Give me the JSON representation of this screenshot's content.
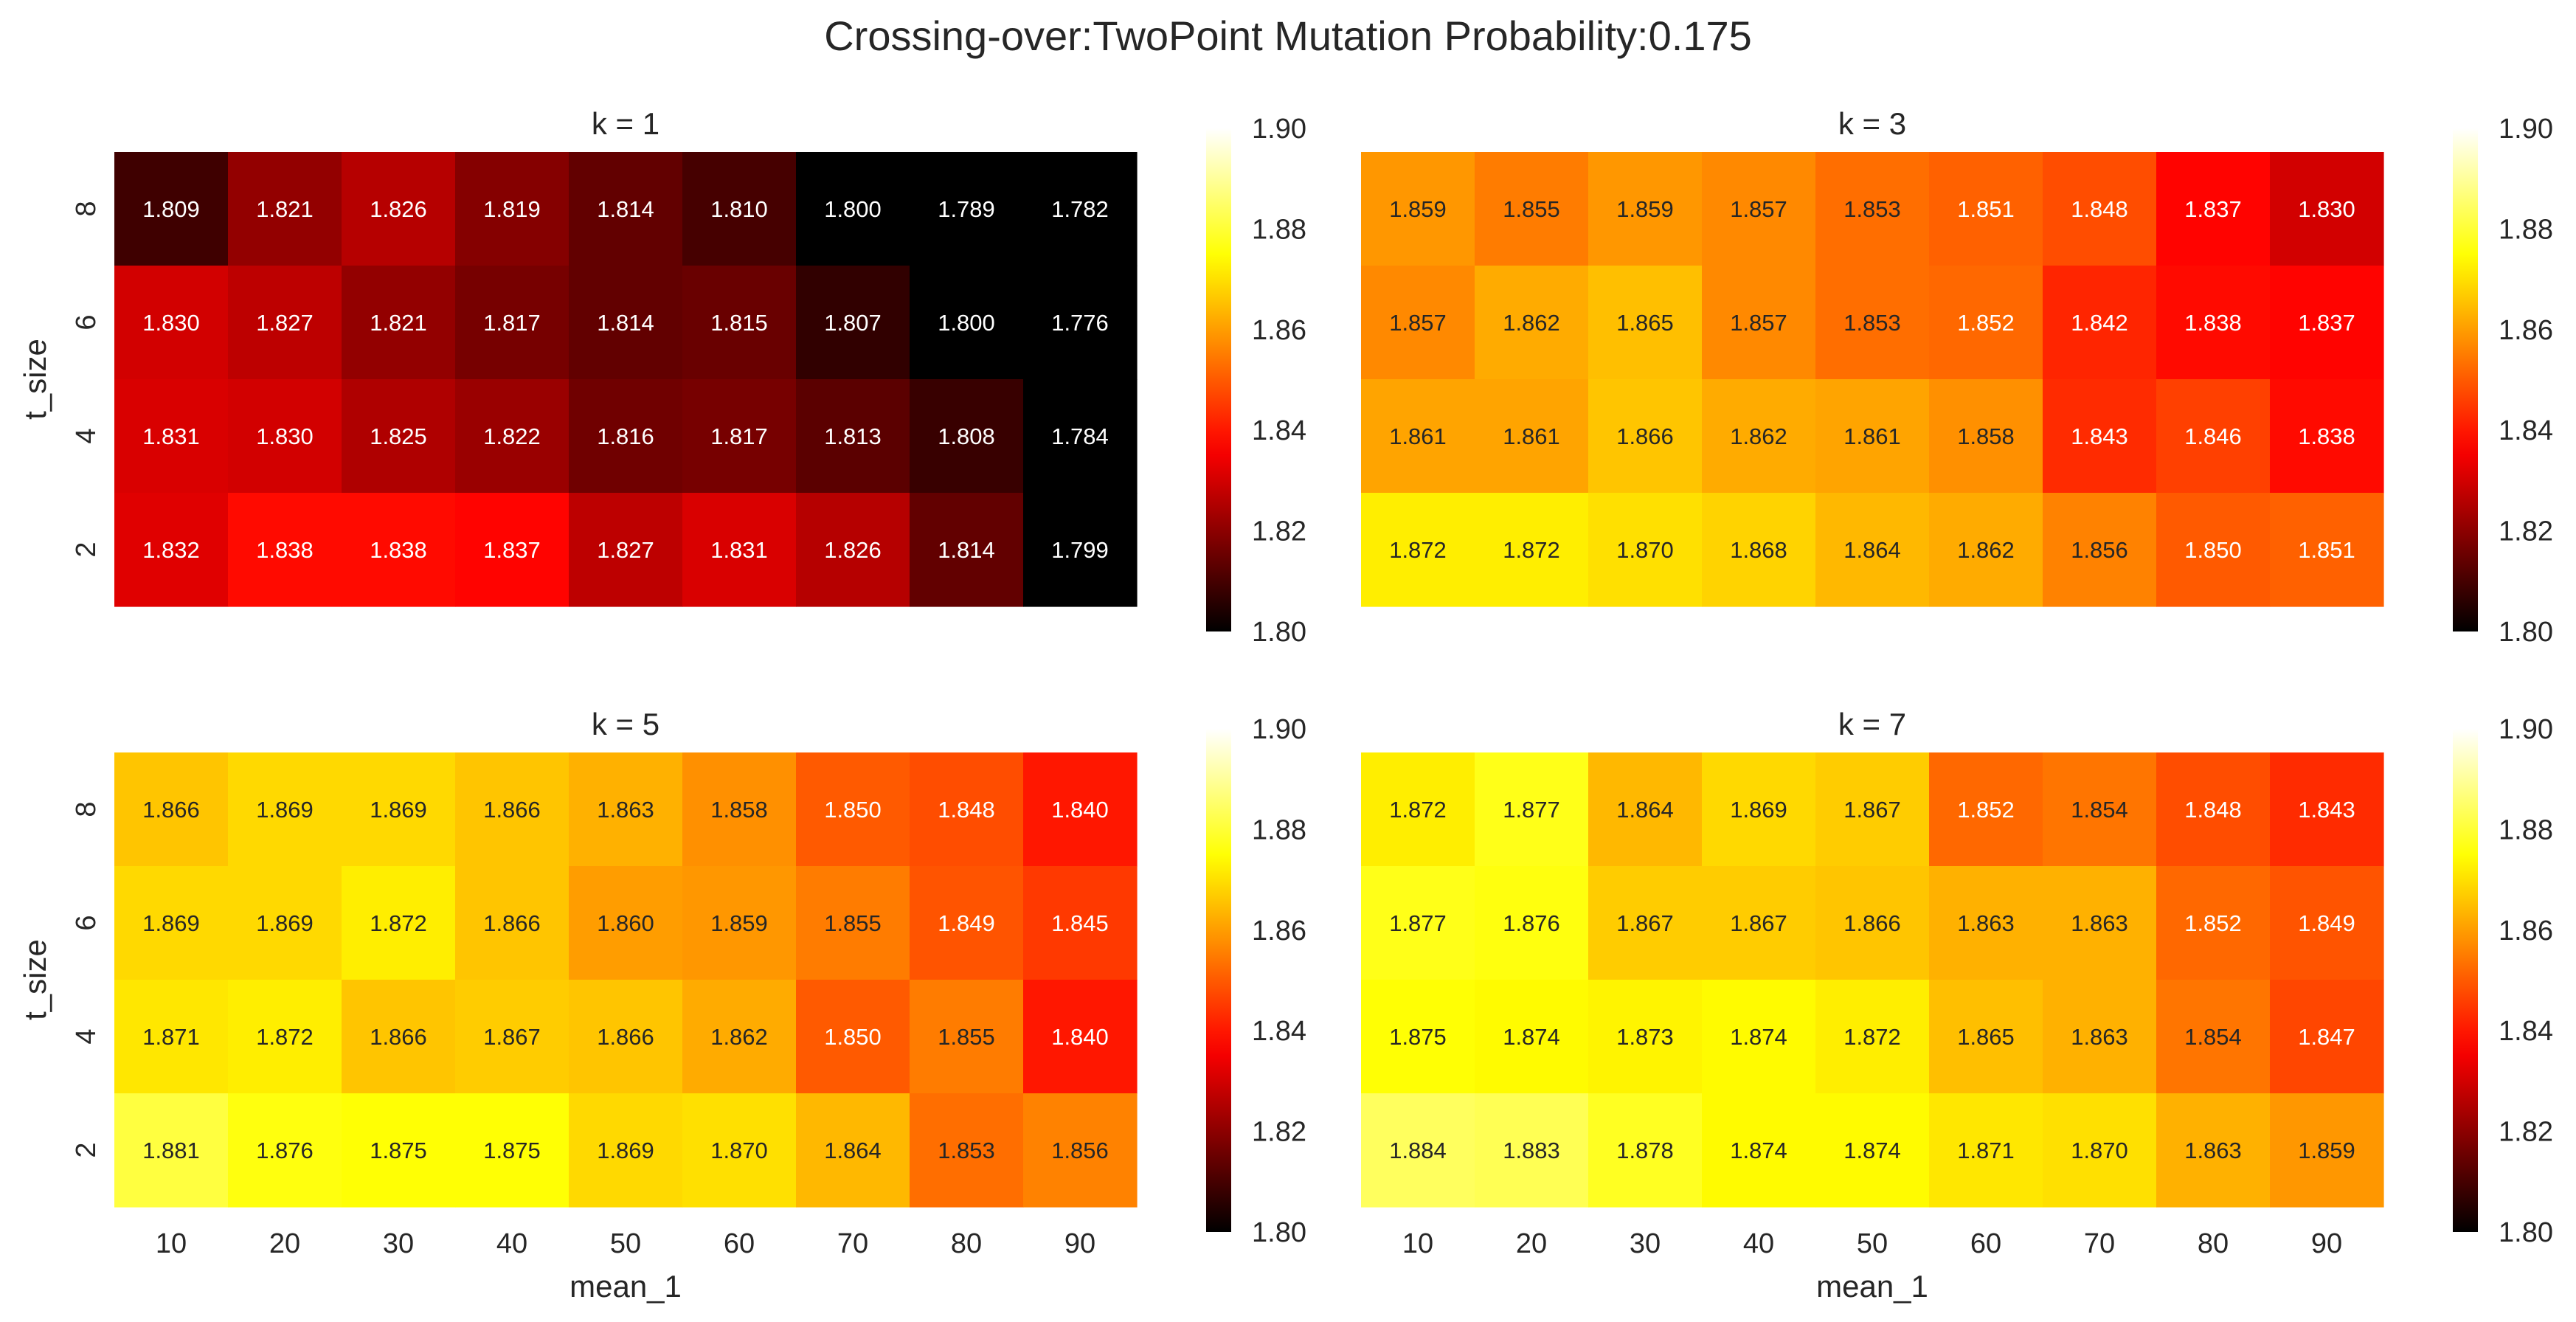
{
  "chart_data": {
    "type": "heatmap",
    "title": "Crossing-over:TwoPoint Mutation Probability:0.175",
    "xlabel": "mean_1",
    "ylabel": "t_size",
    "x_categories": [
      "10",
      "20",
      "30",
      "40",
      "50",
      "60",
      "70",
      "80",
      "90"
    ],
    "y_categories": [
      "8",
      "6",
      "4",
      "2"
    ],
    "colormap": "hot",
    "colorbar": {
      "min": 1.8,
      "max": 1.9,
      "ticks": [
        "1.80",
        "1.82",
        "1.84",
        "1.86",
        "1.88",
        "1.90"
      ]
    },
    "panels": [
      {
        "title": "k = 1",
        "values": [
          [
            1.809,
            1.821,
            1.826,
            1.819,
            1.814,
            1.81,
            1.8,
            1.789,
            1.782
          ],
          [
            1.83,
            1.827,
            1.821,
            1.817,
            1.814,
            1.815,
            1.807,
            1.8,
            1.776
          ],
          [
            1.831,
            1.83,
            1.825,
            1.822,
            1.816,
            1.817,
            1.813,
            1.808,
            1.784
          ],
          [
            1.832,
            1.838,
            1.838,
            1.837,
            1.827,
            1.831,
            1.826,
            1.814,
            1.799
          ]
        ]
      },
      {
        "title": "k = 3",
        "values": [
          [
            1.859,
            1.855,
            1.859,
            1.857,
            1.853,
            1.851,
            1.848,
            1.837,
            1.83
          ],
          [
            1.857,
            1.862,
            1.865,
            1.857,
            1.853,
            1.852,
            1.842,
            1.838,
            1.837
          ],
          [
            1.861,
            1.861,
            1.866,
            1.862,
            1.861,
            1.858,
            1.843,
            1.846,
            1.838
          ],
          [
            1.872,
            1.872,
            1.87,
            1.868,
            1.864,
            1.862,
            1.856,
            1.85,
            1.851
          ]
        ]
      },
      {
        "title": "k = 5",
        "values": [
          [
            1.866,
            1.869,
            1.869,
            1.866,
            1.863,
            1.858,
            1.85,
            1.848,
            1.84
          ],
          [
            1.869,
            1.869,
            1.872,
            1.866,
            1.86,
            1.859,
            1.855,
            1.849,
            1.845
          ],
          [
            1.871,
            1.872,
            1.866,
            1.867,
            1.866,
            1.862,
            1.85,
            1.855,
            1.84
          ],
          [
            1.881,
            1.876,
            1.875,
            1.875,
            1.869,
            1.87,
            1.864,
            1.853,
            1.856
          ]
        ]
      },
      {
        "title": "k = 7",
        "values": [
          [
            1.872,
            1.877,
            1.864,
            1.869,
            1.867,
            1.852,
            1.854,
            1.848,
            1.843
          ],
          [
            1.877,
            1.876,
            1.867,
            1.867,
            1.866,
            1.863,
            1.863,
            1.852,
            1.849
          ],
          [
            1.875,
            1.874,
            1.873,
            1.874,
            1.872,
            1.865,
            1.863,
            1.854,
            1.847
          ],
          [
            1.884,
            1.883,
            1.878,
            1.874,
            1.874,
            1.871,
            1.87,
            1.863,
            1.859
          ]
        ]
      }
    ]
  }
}
